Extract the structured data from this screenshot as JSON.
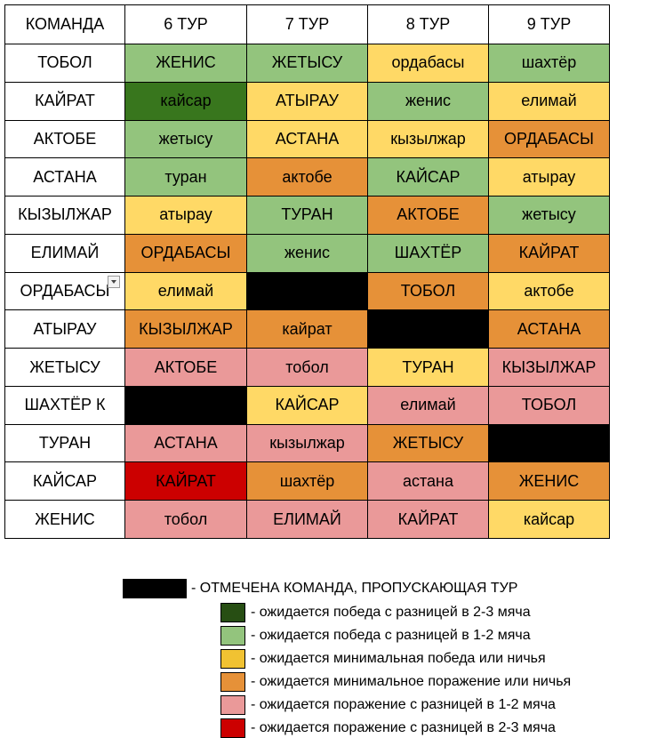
{
  "table": {
    "header": [
      "КОМАНДА",
      "6 ТУР",
      "7 ТУР",
      "8 ТУР",
      "9 ТУР"
    ],
    "rows": [
      {
        "team": "ТОБОЛ",
        "cells": [
          {
            "text": "ЖЕНИС",
            "color": "#93c47d"
          },
          {
            "text": "ЖЕТЫСУ",
            "color": "#93c47d"
          },
          {
            "text": "ордабасы",
            "color": "#ffd966"
          },
          {
            "text": "шахтёр",
            "color": "#93c47d"
          }
        ]
      },
      {
        "team": "КАЙРАТ",
        "cells": [
          {
            "text": "кайсар",
            "color": "#38761d"
          },
          {
            "text": "АТЫРАУ",
            "color": "#ffd966"
          },
          {
            "text": "женис",
            "color": "#93c47d"
          },
          {
            "text": "елимай",
            "color": "#ffd966"
          }
        ]
      },
      {
        "team": "АКТОБЕ",
        "cells": [
          {
            "text": "жетысу",
            "color": "#93c47d"
          },
          {
            "text": "АСТАНА",
            "color": "#ffd966"
          },
          {
            "text": "кызылжар",
            "color": "#ffd966"
          },
          {
            "text": "ОРДАБАСЫ",
            "color": "#e69138"
          }
        ]
      },
      {
        "team": "АСТАНА",
        "cells": [
          {
            "text": "туран",
            "color": "#93c47d"
          },
          {
            "text": "актобе",
            "color": "#e69138"
          },
          {
            "text": "КАЙСАР",
            "color": "#93c47d"
          },
          {
            "text": "атырау",
            "color": "#ffd966"
          }
        ]
      },
      {
        "team": "КЫЗЫЛЖАР",
        "cells": [
          {
            "text": "атырау",
            "color": "#ffd966"
          },
          {
            "text": "ТУРАН",
            "color": "#93c47d"
          },
          {
            "text": "АКТОБЕ",
            "color": "#e69138"
          },
          {
            "text": "жетысу",
            "color": "#93c47d"
          }
        ]
      },
      {
        "team": "ЕЛИМАЙ",
        "cells": [
          {
            "text": "ОРДАБАСЫ",
            "color": "#e69138"
          },
          {
            "text": "женис",
            "color": "#93c47d"
          },
          {
            "text": "ШАХТЁР",
            "color": "#93c47d"
          },
          {
            "text": "КАЙРАТ",
            "color": "#e69138"
          }
        ]
      },
      {
        "team": "ОРДАБАСЫ",
        "cells": [
          {
            "text": "елимай",
            "color": "#ffd966"
          },
          {
            "text": null,
            "color": "#000000"
          },
          {
            "text": "ТОБОЛ",
            "color": "#e69138"
          },
          {
            "text": "актобе",
            "color": "#ffd966"
          }
        ]
      },
      {
        "team": "АТЫРАУ",
        "cells": [
          {
            "text": "КЫЗЫЛЖАР",
            "color": "#e69138"
          },
          {
            "text": "кайрат",
            "color": "#e69138"
          },
          {
            "text": null,
            "color": "#000000"
          },
          {
            "text": "АСТАНА",
            "color": "#e69138"
          }
        ]
      },
      {
        "team": "ЖЕТЫСУ",
        "cells": [
          {
            "text": "АКТОБЕ",
            "color": "#ea9999"
          },
          {
            "text": "тобол",
            "color": "#ea9999"
          },
          {
            "text": "ТУРАН",
            "color": "#ffd966"
          },
          {
            "text": "КЫЗЫЛЖАР",
            "color": "#ea9999"
          }
        ]
      },
      {
        "team": "ШАХТЁР К",
        "cells": [
          {
            "text": null,
            "color": "#000000"
          },
          {
            "text": "КАЙСАР",
            "color": "#ffd966"
          },
          {
            "text": "елимай",
            "color": "#ea9999"
          },
          {
            "text": "ТОБОЛ",
            "color": "#ea9999"
          }
        ]
      },
      {
        "team": "ТУРАН",
        "cells": [
          {
            "text": "АСТАНА",
            "color": "#ea9999"
          },
          {
            "text": "кызылжар",
            "color": "#ea9999"
          },
          {
            "text": "ЖЕТЫСУ",
            "color": "#e69138"
          },
          {
            "text": null,
            "color": "#000000"
          }
        ]
      },
      {
        "team": "КАЙСАР",
        "cells": [
          {
            "text": "КАЙРАТ",
            "color": "#cc0000"
          },
          {
            "text": "шахтёр",
            "color": "#e69138"
          },
          {
            "text": "астана",
            "color": "#ea9999"
          },
          {
            "text": "ЖЕНИС",
            "color": "#e69138"
          }
        ]
      },
      {
        "team": "ЖЕНИС",
        "cells": [
          {
            "text": "тобол",
            "color": "#ea9999"
          },
          {
            "text": "ЕЛИМАЙ",
            "color": "#ea9999"
          },
          {
            "text": "КАЙРАТ",
            "color": "#ea9999"
          },
          {
            "text": "кайсар",
            "color": "#ffd966"
          }
        ]
      }
    ]
  },
  "legend": [
    {
      "color": "#000000",
      "text": "- ОТМЕЧЕНА КОМАНДА, ПРОПУСКАЮЩАЯ ТУР"
    },
    {
      "color": "#274e13",
      "text": "- ожидается победа с разницей в 2-3 мяча"
    },
    {
      "color": "#93c47d",
      "text": "- ожидается победа с разницей в 1-2 мяча"
    },
    {
      "color": "#f1c232",
      "text": "- ожидается минимальная победа или ничья"
    },
    {
      "color": "#e69138",
      "text": "- ожидается минимальное поражение или ничья"
    },
    {
      "color": "#ea9999",
      "text": "- ожидается поражение с разницей в 1-2 мяча"
    },
    {
      "color": "#cc0000",
      "text": "- ожидается поражение с разницей в 2-3 мяча"
    }
  ]
}
